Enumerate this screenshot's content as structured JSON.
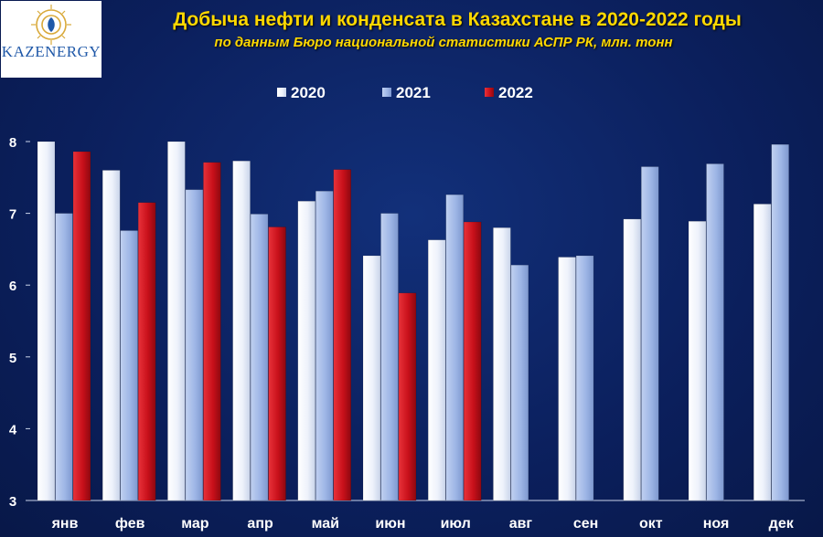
{
  "logo": {
    "text": "KAZENERGY",
    "icon": "kazenergy-emblem-icon"
  },
  "header": {
    "title": "Добыча нефти и конденсата в Казахстане в 2020-2022 годы",
    "subtitle": "по данным Бюро национальной статистики АСПР РК, млн. тонн"
  },
  "colors": {
    "background": "#0b1f5c",
    "title": "#ffd800",
    "series_2020": "#e6edf8",
    "series_2021": "#9eb6e6",
    "series_2022": "#c8101a"
  },
  "chart_data": {
    "type": "bar",
    "title": "Добыча нефти и конденсата в Казахстане в 2020-2022 годы",
    "subtitle": "по данным Бюро национальной статистики АСПР РК, млн. тонн",
    "categories": [
      "янв",
      "фев",
      "мар",
      "апр",
      "май",
      "июн",
      "июл",
      "авг",
      "сен",
      "окт",
      "ноя",
      "дек"
    ],
    "yticks": [
      "3",
      "4",
      "5",
      "6",
      "7",
      "8"
    ],
    "ylim": [
      3,
      8
    ],
    "grid": false,
    "legend_position": "top",
    "series": [
      {
        "name": "2020",
        "color": "#e6edf8",
        "values": [
          8.0,
          7.6,
          8.0,
          7.73,
          7.17,
          6.41,
          6.63,
          6.8,
          6.39,
          6.92,
          6.89,
          7.13
        ]
      },
      {
        "name": "2021",
        "color": "#9eb6e6",
        "values": [
          7.0,
          6.76,
          7.33,
          6.99,
          7.31,
          7.0,
          7.26,
          6.28,
          6.41,
          7.65,
          7.69,
          7.96
        ]
      },
      {
        "name": "2022",
        "color": "#c8101a",
        "values": [
          7.86,
          7.15,
          7.71,
          6.81,
          7.61,
          5.89,
          6.88,
          null,
          null,
          null,
          null,
          null
        ]
      }
    ]
  }
}
